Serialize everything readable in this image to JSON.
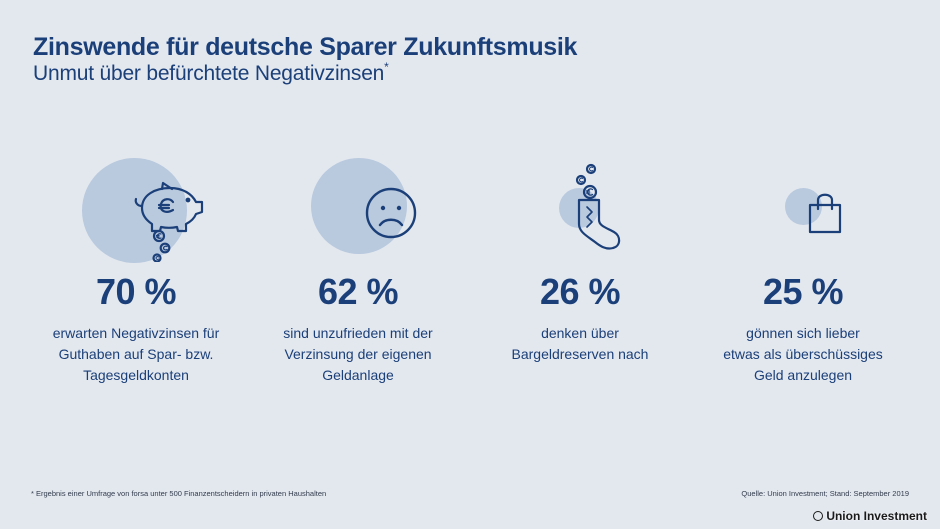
{
  "header": {
    "title": "Zinswende für deutsche Sparer Zukunftsmusik",
    "subtitle": "Unmut über befürchtete Negativzinsen",
    "subtitle_marker": "*"
  },
  "colors": {
    "accent": "#1b3f78",
    "bubble": "#b9c9de",
    "background": "#e3e8ef"
  },
  "chart_data": {
    "type": "table",
    "title": "Zinswende für deutsche Sparer Zukunftsmusik",
    "subtitle": "Unmut über befürchtete Negativzinsen*",
    "unit": "%",
    "items": [
      {
        "value": 70,
        "label": "70 %",
        "description": "erwarten Negativzinsen für\nGuthaben auf Spar- bzw.\nTagesgeldkonten",
        "icon": "piggy-bank-icon"
      },
      {
        "value": 62,
        "label": "62 %",
        "description": "sind unzufrieden mit der\nVerzinsung der eigenen\nGeldanlage",
        "icon": "sad-face-icon"
      },
      {
        "value": 26,
        "label": "26 %",
        "description": "denken über\nBargeldreserven nach",
        "icon": "money-sock-icon"
      },
      {
        "value": 25,
        "label": "25 %",
        "description": "gönnen sich lieber\netwas als überschüssiges\nGeld anzulegen",
        "icon": "shopping-bag-icon"
      }
    ]
  },
  "footer": {
    "footnote": "* Ergebnis einer Umfrage von forsa unter 500 Finanzentscheidern in privaten Haushalten",
    "source": "Quelle: Union Investment; Stand: September 2019",
    "brand": "Union Investment"
  }
}
